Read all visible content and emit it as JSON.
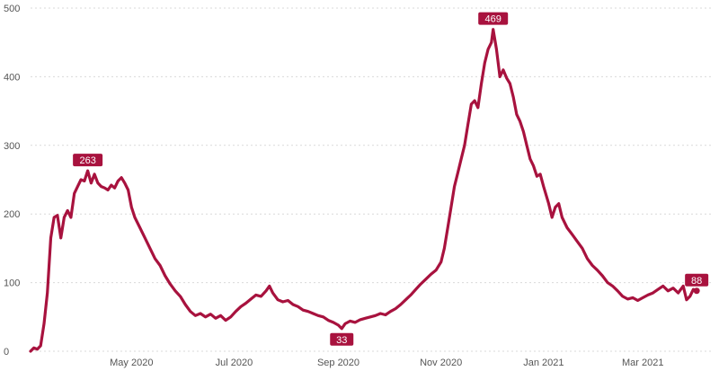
{
  "chart_data": {
    "type": "line",
    "title": "",
    "xlabel": "",
    "ylabel": "",
    "ylim": [
      0,
      500
    ],
    "yticks": [
      0,
      100,
      200,
      300,
      400,
      500
    ],
    "xticks": [
      {
        "date": "2020-05-01",
        "label": "May 2020"
      },
      {
        "date": "2020-07-01",
        "label": "Jul 2020"
      },
      {
        "date": "2020-09-01",
        "label": "Sep 2020"
      },
      {
        "date": "2020-11-01",
        "label": "Nov 2020"
      },
      {
        "date": "2021-01-01",
        "label": "Jan 2021"
      },
      {
        "date": "2021-03-01",
        "label": "Mar 2021"
      }
    ],
    "xlim": [
      "2020-03-02",
      "2021-04-11"
    ],
    "grid": "horizontal dotted",
    "line_color": "#a8123e",
    "series": [
      {
        "points": [
          [
            "2020-03-02",
            0
          ],
          [
            "2020-03-04",
            5
          ],
          [
            "2020-03-06",
            3
          ],
          [
            "2020-03-08",
            8
          ],
          [
            "2020-03-10",
            40
          ],
          [
            "2020-03-12",
            85
          ],
          [
            "2020-03-14",
            165
          ],
          [
            "2020-03-16",
            195
          ],
          [
            "2020-03-18",
            198
          ],
          [
            "2020-03-20",
            165
          ],
          [
            "2020-03-22",
            195
          ],
          [
            "2020-03-24",
            205
          ],
          [
            "2020-03-26",
            195
          ],
          [
            "2020-03-28",
            230
          ],
          [
            "2020-03-30",
            240
          ],
          [
            "2020-04-01",
            250
          ],
          [
            "2020-04-03",
            248
          ],
          [
            "2020-04-05",
            263
          ],
          [
            "2020-04-07",
            245
          ],
          [
            "2020-04-09",
            258
          ],
          [
            "2020-04-11",
            245
          ],
          [
            "2020-04-13",
            240
          ],
          [
            "2020-04-15",
            238
          ],
          [
            "2020-04-17",
            235
          ],
          [
            "2020-04-19",
            242
          ],
          [
            "2020-04-21",
            238
          ],
          [
            "2020-04-23",
            248
          ],
          [
            "2020-04-25",
            253
          ],
          [
            "2020-04-27",
            245
          ],
          [
            "2020-04-29",
            235
          ],
          [
            "2020-05-01",
            210
          ],
          [
            "2020-05-03",
            195
          ],
          [
            "2020-05-06",
            180
          ],
          [
            "2020-05-09",
            165
          ],
          [
            "2020-05-12",
            150
          ],
          [
            "2020-05-15",
            135
          ],
          [
            "2020-05-18",
            125
          ],
          [
            "2020-05-21",
            110
          ],
          [
            "2020-05-24",
            98
          ],
          [
            "2020-05-27",
            88
          ],
          [
            "2020-05-30",
            80
          ],
          [
            "2020-06-02",
            68
          ],
          [
            "2020-06-05",
            58
          ],
          [
            "2020-06-08",
            52
          ],
          [
            "2020-06-11",
            55
          ],
          [
            "2020-06-14",
            50
          ],
          [
            "2020-06-17",
            54
          ],
          [
            "2020-06-20",
            48
          ],
          [
            "2020-06-23",
            52
          ],
          [
            "2020-06-26",
            45
          ],
          [
            "2020-06-29",
            50
          ],
          [
            "2020-07-02",
            58
          ],
          [
            "2020-07-05",
            65
          ],
          [
            "2020-07-08",
            70
          ],
          [
            "2020-07-11",
            76
          ],
          [
            "2020-07-14",
            82
          ],
          [
            "2020-07-17",
            80
          ],
          [
            "2020-07-20",
            88
          ],
          [
            "2020-07-22",
            95
          ],
          [
            "2020-07-24",
            85
          ],
          [
            "2020-07-27",
            75
          ],
          [
            "2020-07-30",
            72
          ],
          [
            "2020-08-02",
            74
          ],
          [
            "2020-08-05",
            68
          ],
          [
            "2020-08-08",
            65
          ],
          [
            "2020-08-11",
            60
          ],
          [
            "2020-08-14",
            58
          ],
          [
            "2020-08-17",
            55
          ],
          [
            "2020-08-20",
            52
          ],
          [
            "2020-08-23",
            50
          ],
          [
            "2020-08-26",
            45
          ],
          [
            "2020-08-29",
            42
          ],
          [
            "2020-09-01",
            38
          ],
          [
            "2020-09-03",
            33
          ],
          [
            "2020-09-05",
            40
          ],
          [
            "2020-09-08",
            44
          ],
          [
            "2020-09-11",
            42
          ],
          [
            "2020-09-14",
            46
          ],
          [
            "2020-09-17",
            48
          ],
          [
            "2020-09-20",
            50
          ],
          [
            "2020-09-23",
            52
          ],
          [
            "2020-09-26",
            55
          ],
          [
            "2020-09-29",
            53
          ],
          [
            "2020-10-02",
            58
          ],
          [
            "2020-10-05",
            62
          ],
          [
            "2020-10-08",
            68
          ],
          [
            "2020-10-11",
            75
          ],
          [
            "2020-10-14",
            82
          ],
          [
            "2020-10-17",
            90
          ],
          [
            "2020-10-20",
            98
          ],
          [
            "2020-10-23",
            105
          ],
          [
            "2020-10-26",
            112
          ],
          [
            "2020-10-29",
            118
          ],
          [
            "2020-11-01",
            130
          ],
          [
            "2020-11-03",
            150
          ],
          [
            "2020-11-05",
            180
          ],
          [
            "2020-11-07",
            210
          ],
          [
            "2020-11-09",
            240
          ],
          [
            "2020-11-11",
            260
          ],
          [
            "2020-11-13",
            280
          ],
          [
            "2020-11-15",
            300
          ],
          [
            "2020-11-17",
            330
          ],
          [
            "2020-11-19",
            360
          ],
          [
            "2020-11-21",
            365
          ],
          [
            "2020-11-23",
            355
          ],
          [
            "2020-11-25",
            390
          ],
          [
            "2020-11-27",
            420
          ],
          [
            "2020-11-29",
            440
          ],
          [
            "2020-12-01",
            450
          ],
          [
            "2020-12-02",
            469
          ],
          [
            "2020-12-04",
            440
          ],
          [
            "2020-12-06",
            400
          ],
          [
            "2020-12-08",
            410
          ],
          [
            "2020-12-10",
            398
          ],
          [
            "2020-12-12",
            390
          ],
          [
            "2020-12-14",
            370
          ],
          [
            "2020-12-16",
            345
          ],
          [
            "2020-12-18",
            335
          ],
          [
            "2020-12-20",
            320
          ],
          [
            "2020-12-22",
            300
          ],
          [
            "2020-12-24",
            280
          ],
          [
            "2020-12-26",
            270
          ],
          [
            "2020-12-28",
            255
          ],
          [
            "2020-12-30",
            258
          ],
          [
            "2021-01-01",
            240
          ],
          [
            "2021-01-04",
            215
          ],
          [
            "2021-01-06",
            195
          ],
          [
            "2021-01-08",
            210
          ],
          [
            "2021-01-10",
            215
          ],
          [
            "2021-01-12",
            195
          ],
          [
            "2021-01-15",
            180
          ],
          [
            "2021-01-18",
            170
          ],
          [
            "2021-01-21",
            160
          ],
          [
            "2021-01-24",
            150
          ],
          [
            "2021-01-27",
            135
          ],
          [
            "2021-01-30",
            125
          ],
          [
            "2021-02-02",
            118
          ],
          [
            "2021-02-05",
            110
          ],
          [
            "2021-02-08",
            100
          ],
          [
            "2021-02-11",
            95
          ],
          [
            "2021-02-14",
            88
          ],
          [
            "2021-02-17",
            80
          ],
          [
            "2021-02-20",
            76
          ],
          [
            "2021-02-23",
            78
          ],
          [
            "2021-02-26",
            74
          ],
          [
            "2021-03-01",
            78
          ],
          [
            "2021-03-04",
            82
          ],
          [
            "2021-03-07",
            85
          ],
          [
            "2021-03-10",
            90
          ],
          [
            "2021-03-13",
            95
          ],
          [
            "2021-03-16",
            88
          ],
          [
            "2021-03-19",
            92
          ],
          [
            "2021-03-22",
            85
          ],
          [
            "2021-03-25",
            95
          ],
          [
            "2021-03-27",
            75
          ],
          [
            "2021-03-29",
            80
          ],
          [
            "2021-03-31",
            90
          ],
          [
            "2021-04-02",
            88
          ]
        ]
      }
    ],
    "annotations": [
      {
        "date": "2020-04-05",
        "value": 263,
        "label": "263",
        "position": "above"
      },
      {
        "date": "2020-12-02",
        "value": 469,
        "label": "469",
        "position": "above"
      },
      {
        "date": "2020-09-03",
        "value": 33,
        "label": "33",
        "position": "below"
      },
      {
        "date": "2021-04-02",
        "value": 88,
        "label": "88",
        "position": "above",
        "marker": true
      }
    ]
  }
}
